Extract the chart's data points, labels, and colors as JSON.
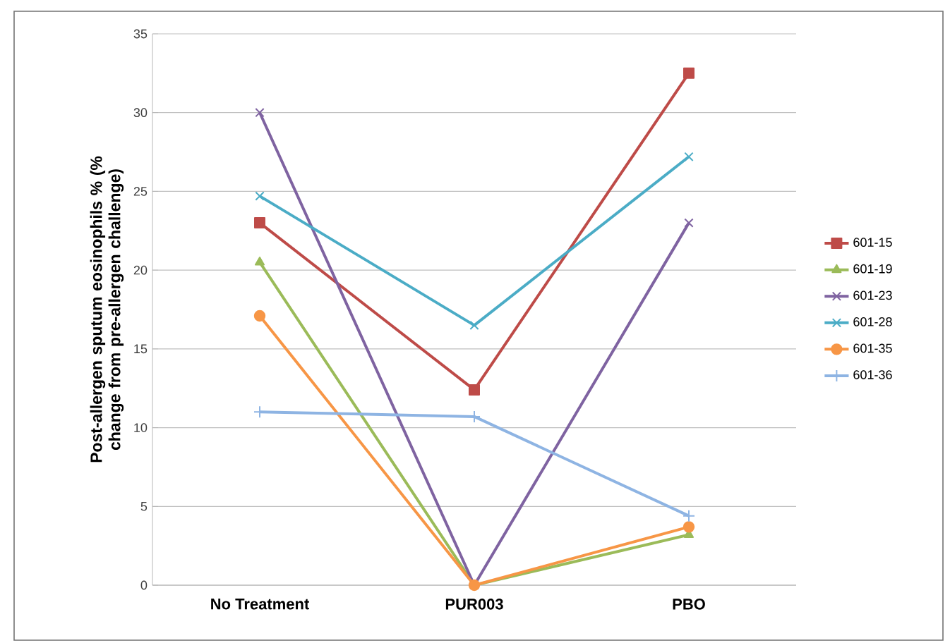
{
  "chart_data": {
    "type": "line",
    "ylabel": "Post-allergen sputum eosinophils % (% change from pre-allergen challenge)",
    "categories": [
      "No Treatment",
      "PUR003",
      "PBO"
    ],
    "ylim": [
      0,
      35
    ],
    "yticks": [
      0,
      5,
      10,
      15,
      20,
      25,
      30,
      35
    ],
    "grid": "y",
    "legend": "right",
    "line_style": "solid",
    "series": [
      {
        "name": "601-15",
        "color": "#be4b48",
        "marker": "square",
        "values": [
          23.0,
          12.4,
          32.5
        ]
      },
      {
        "name": "601-19",
        "color": "#9bbb59",
        "marker": "triangle",
        "values": [
          20.5,
          0,
          3.2
        ]
      },
      {
        "name": "601-23",
        "color": "#7f63a1",
        "marker": "cross",
        "values": [
          30.0,
          0,
          23.0
        ]
      },
      {
        "name": "601-28",
        "color": "#4bacc6",
        "marker": "cross",
        "values": [
          24.7,
          16.5,
          27.2
        ]
      },
      {
        "name": "601-35",
        "color": "#f79646",
        "marker": "circle",
        "values": [
          17.1,
          0,
          3.7
        ]
      },
      {
        "name": "601-36",
        "color": "#8eb4e3",
        "marker": "plus",
        "values": [
          11.0,
          10.7,
          4.4
        ]
      }
    ]
  }
}
